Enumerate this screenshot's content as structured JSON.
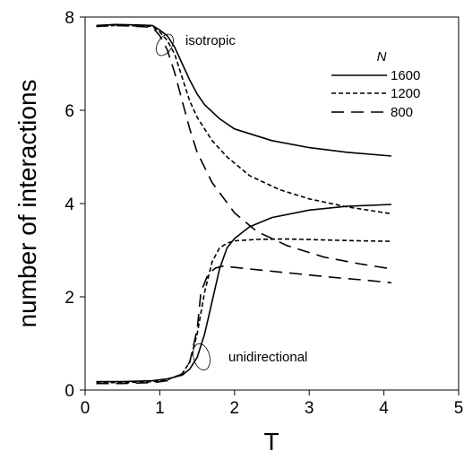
{
  "chart_data": {
    "type": "line",
    "xlabel": "T",
    "ylabel": "number of interactions",
    "xlim": [
      0,
      5
    ],
    "ylim": [
      0,
      8
    ],
    "xticks": [
      "0",
      "1",
      "2",
      "3",
      "4",
      "5"
    ],
    "yticks": [
      "0",
      "2",
      "4",
      "6",
      "8"
    ],
    "grid": false,
    "legend": {
      "title": "N",
      "position": "top-right",
      "entries": [
        "1600",
        "1200",
        "800"
      ]
    },
    "annotations": [
      "isotropic",
      "unidirectional"
    ],
    "series": [
      {
        "name": "1600",
        "style": "solid",
        "branch": "isotropic",
        "x": [
          0.15,
          0.4,
          0.7,
          0.9,
          1.0,
          1.1,
          1.2,
          1.3,
          1.4,
          1.5,
          1.6,
          1.8,
          2.0,
          2.5,
          3.0,
          3.5,
          4.1
        ],
        "y": [
          7.82,
          7.84,
          7.83,
          7.82,
          7.72,
          7.6,
          7.35,
          7.0,
          6.65,
          6.35,
          6.12,
          5.82,
          5.6,
          5.35,
          5.2,
          5.1,
          5.02
        ]
      },
      {
        "name": "1200",
        "style": "dashed",
        "branch": "isotropic",
        "x": [
          0.15,
          0.4,
          0.7,
          0.9,
          1.0,
          1.1,
          1.2,
          1.3,
          1.4,
          1.5,
          1.7,
          1.9,
          2.2,
          2.6,
          3.0,
          3.5,
          4.1
        ],
        "y": [
          7.8,
          7.82,
          7.81,
          7.8,
          7.68,
          7.5,
          7.2,
          6.7,
          6.2,
          5.85,
          5.35,
          5.0,
          4.6,
          4.3,
          4.1,
          3.93,
          3.78
        ]
      },
      {
        "name": "800",
        "style": "long-dash",
        "branch": "isotropic",
        "x": [
          0.15,
          0.4,
          0.7,
          0.9,
          1.0,
          1.1,
          1.2,
          1.3,
          1.4,
          1.5,
          1.7,
          2.0,
          2.3,
          2.7,
          3.2,
          3.7,
          4.1
        ],
        "y": [
          7.8,
          7.82,
          7.8,
          7.78,
          7.6,
          7.3,
          6.8,
          6.2,
          5.6,
          5.1,
          4.45,
          3.8,
          3.4,
          3.1,
          2.85,
          2.7,
          2.6
        ]
      },
      {
        "name": "1600",
        "style": "solid",
        "branch": "unidirectional",
        "x": [
          0.15,
          0.5,
          0.9,
          1.1,
          1.3,
          1.4,
          1.5,
          1.6,
          1.7,
          1.8,
          1.9,
          2.0,
          2.2,
          2.5,
          3.0,
          3.5,
          4.1
        ],
        "y": [
          0.18,
          0.18,
          0.2,
          0.24,
          0.32,
          0.45,
          0.7,
          1.2,
          1.9,
          2.6,
          3.05,
          3.25,
          3.5,
          3.7,
          3.86,
          3.94,
          3.98
        ]
      },
      {
        "name": "1200",
        "style": "dashed",
        "branch": "unidirectional",
        "x": [
          0.15,
          0.5,
          0.9,
          1.1,
          1.3,
          1.4,
          1.5,
          1.6,
          1.7,
          1.8,
          1.9,
          2.0,
          2.3,
          2.7,
          3.2,
          3.7,
          4.1
        ],
        "y": [
          0.16,
          0.16,
          0.18,
          0.22,
          0.35,
          0.6,
          1.2,
          2.1,
          2.75,
          3.05,
          3.15,
          3.2,
          3.23,
          3.24,
          3.22,
          3.2,
          3.19
        ]
      },
      {
        "name": "800",
        "style": "long-dash",
        "branch": "unidirectional",
        "x": [
          0.15,
          0.5,
          0.9,
          1.1,
          1.3,
          1.4,
          1.5,
          1.55,
          1.65,
          1.75,
          1.85,
          1.95,
          2.3,
          2.8,
          3.3,
          3.8,
          4.1
        ],
        "y": [
          0.14,
          0.14,
          0.16,
          0.2,
          0.35,
          0.6,
          1.3,
          2.1,
          2.5,
          2.62,
          2.66,
          2.64,
          2.58,
          2.5,
          2.42,
          2.35,
          2.3
        ]
      }
    ]
  }
}
